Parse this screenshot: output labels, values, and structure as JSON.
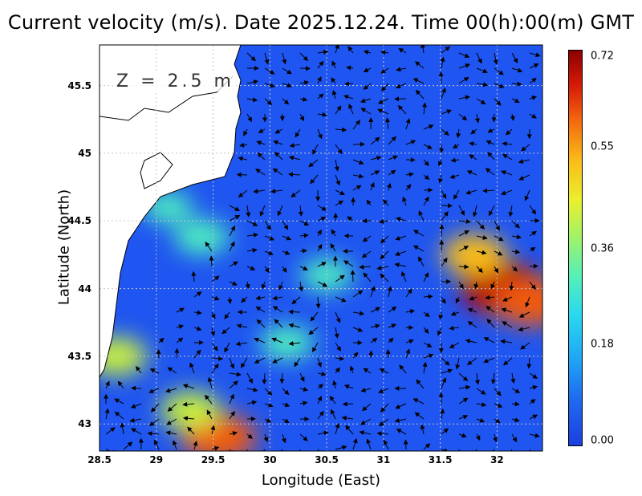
{
  "title": "Current velocity (m/s). Date 2025.12.24. Time 00(h):00(m) GMT",
  "depth_label": "Z = 2.5 m",
  "x_axis": {
    "label": "Longitude (East)",
    "ticks": [
      "28.5",
      "29",
      "29.5",
      "30",
      "30.5",
      "31",
      "31.5",
      "32"
    ],
    "range": [
      28.5,
      32.4
    ]
  },
  "y_axis": {
    "label": "Latitude (North)",
    "ticks": [
      "43",
      "43.5",
      "44",
      "44.5",
      "45",
      "45.5"
    ],
    "range": [
      42.8,
      45.8
    ]
  },
  "colorbar": {
    "labels": [
      "0.72",
      "0.55",
      "0.36",
      "0.18",
      "0.00"
    ],
    "values": [
      0.72,
      0.55,
      0.36,
      0.18,
      0.0
    ],
    "min": 0.0,
    "max": 0.72
  },
  "colors": {
    "sea_background": "#1f55f0",
    "land": "#ffffff",
    "coastline": "#000000",
    "grid": "#c8c8c8"
  },
  "speed_hotspots": [
    {
      "lon": 32.05,
      "lat": 44.0,
      "speed": 0.72
    },
    {
      "lon": 32.3,
      "lat": 43.9,
      "speed": 0.6
    },
    {
      "lon": 29.55,
      "lat": 42.9,
      "speed": 0.6
    },
    {
      "lon": 29.3,
      "lat": 43.1,
      "speed": 0.4
    },
    {
      "lon": 31.8,
      "lat": 44.25,
      "speed": 0.45
    },
    {
      "lon": 30.15,
      "lat": 43.6,
      "speed": 0.3
    },
    {
      "lon": 30.5,
      "lat": 44.1,
      "speed": 0.28
    },
    {
      "lon": 29.4,
      "lat": 44.38,
      "speed": 0.32
    },
    {
      "lon": 28.65,
      "lat": 43.5,
      "speed": 0.4
    },
    {
      "lon": 29.1,
      "lat": 44.6,
      "speed": 0.25
    }
  ]
}
